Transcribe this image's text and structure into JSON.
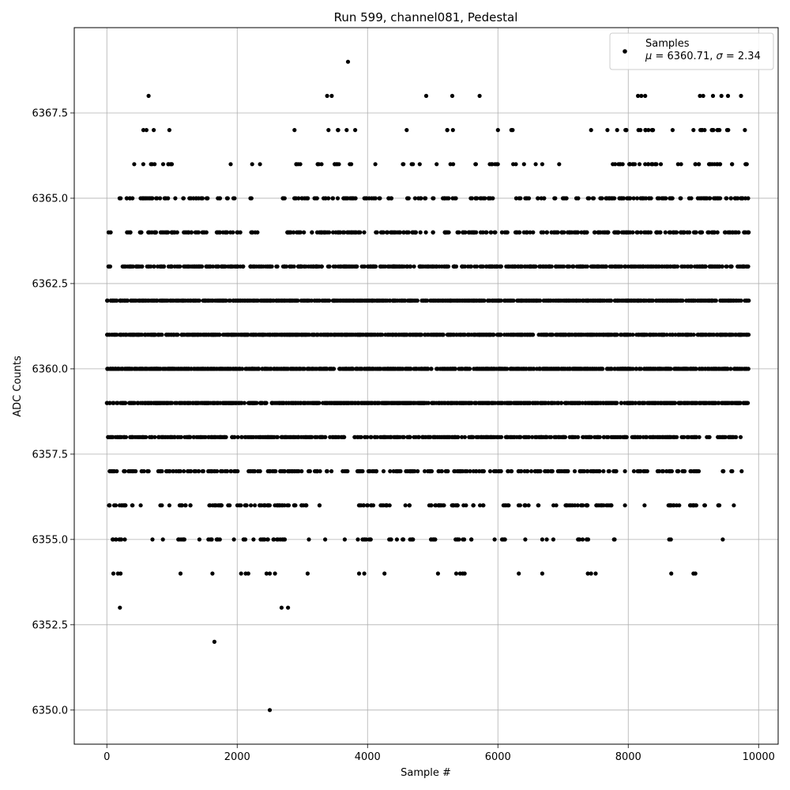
{
  "chart_data": {
    "type": "scatter",
    "title": "Run 599, channel081, Pedestal",
    "xlabel": "Sample #",
    "ylabel": "ADC Counts",
    "xlim": [
      -500,
      10300
    ],
    "ylim": [
      6349.0,
      6370.0
    ],
    "xticks": [
      0,
      2000,
      4000,
      6000,
      8000,
      10000
    ],
    "xtick_labels": [
      "0",
      "2000",
      "4000",
      "6000",
      "8000",
      "10000"
    ],
    "yticks": [
      6350.0,
      6352.5,
      6355.0,
      6357.5,
      6360.0,
      6362.5,
      6365.0,
      6367.5
    ],
    "ytick_labels": [
      "6350.0",
      "6352.5",
      "6355.0",
      "6357.5",
      "6360.0",
      "6362.5",
      "6365.0",
      "6367.5"
    ],
    "grid": true,
    "legend": {
      "placement": "top-right",
      "entries": [
        {
          "name": "Samples",
          "stat_mu": "6360.71",
          "stat_sigma": "2.34"
        }
      ]
    },
    "marker_color": "#000000",
    "series": [
      {
        "name": "Samples",
        "x_range": [
          0,
          9850
        ],
        "points": [
          [
            1650,
            6352
          ],
          [
            2500,
            6350
          ],
          [
            3700,
            6369
          ],
          [
            640,
            6368
          ],
          [
            3380,
            6368
          ],
          [
            3450,
            6368
          ],
          [
            4900,
            6368
          ],
          [
            5300,
            6368
          ],
          [
            5720,
            6368
          ],
          [
            8150,
            6368
          ],
          [
            8200,
            6368
          ],
          [
            8260,
            6368
          ],
          [
            9100,
            6368
          ],
          [
            9150,
            6368
          ],
          [
            9300,
            6368
          ],
          [
            9430,
            6368
          ],
          [
            9530,
            6368
          ],
          [
            9730,
            6368
          ],
          [
            200,
            6353
          ],
          [
            2680,
            6353
          ],
          [
            2780,
            6353
          ],
          [
            100,
            6354
          ],
          [
            170,
            6354
          ],
          [
            210,
            6354
          ],
          [
            1130,
            6354
          ],
          [
            1620,
            6354
          ],
          [
            2060,
            6354
          ],
          [
            2130,
            6354
          ],
          [
            2170,
            6354
          ],
          [
            2450,
            6354
          ],
          [
            2500,
            6354
          ],
          [
            2580,
            6354
          ],
          [
            3080,
            6354
          ],
          [
            3870,
            6354
          ],
          [
            3950,
            6354
          ],
          [
            4260,
            6354
          ],
          [
            5080,
            6354
          ],
          [
            5360,
            6354
          ],
          [
            5420,
            6354
          ],
          [
            5460,
            6354
          ],
          [
            5490,
            6354
          ],
          [
            6320,
            6354
          ],
          [
            6680,
            6354
          ],
          [
            7380,
            6354
          ],
          [
            7430,
            6354
          ],
          [
            7500,
            6354
          ],
          [
            8660,
            6354
          ],
          [
            9000,
            6354
          ],
          [
            9030,
            6354
          ]
        ],
        "dense_levels": [
          {
            "y": 6367,
            "segments": [
              [
                560,
                620
              ],
              [
                720,
                720
              ],
              [
                960,
                960
              ],
              [
                2880,
                2880
              ],
              [
                3400,
                3400
              ],
              [
                3520,
                3560
              ],
              [
                3680,
                3680
              ],
              [
                3810,
                3810
              ],
              [
                4600,
                4600
              ],
              [
                5220,
                5240
              ],
              [
                5310,
                5310
              ],
              [
                6000,
                6000
              ],
              [
                6200,
                6240
              ],
              [
                7430,
                7430
              ],
              [
                7680,
                7680
              ],
              [
                7830,
                7830
              ],
              [
                7900,
                7980
              ],
              [
                8150,
                8200
              ],
              [
                8260,
                8430
              ],
              [
                8680,
                8680
              ],
              [
                9000,
                9000
              ],
              [
                9100,
                9190
              ],
              [
                9280,
                9420
              ],
              [
                9500,
                9560
              ],
              [
                9790,
                9790
              ]
            ]
          },
          {
            "y": 6366,
            "segments": [
              [
                420,
                420
              ],
              [
                560,
                560
              ],
              [
                660,
                740
              ],
              [
                850,
                1000
              ],
              [
                1900,
                1900
              ],
              [
                2230,
                2230
              ],
              [
                2350,
                2350
              ],
              [
                2880,
                2980
              ],
              [
                3200,
                3300
              ],
              [
                3480,
                3600
              ],
              [
                3720,
                3760
              ],
              [
                4120,
                4120
              ],
              [
                4530,
                4560
              ],
              [
                4660,
                4720
              ],
              [
                4800,
                4800
              ],
              [
                5060,
                5060
              ],
              [
                5260,
                5320
              ],
              [
                5650,
                5700
              ],
              [
                5850,
                6000
              ],
              [
                6230,
                6280
              ],
              [
                6400,
                6400
              ],
              [
                6580,
                6580
              ],
              [
                6680,
                6680
              ],
              [
                6940,
                6940
              ],
              [
                7740,
                7800
              ],
              [
                7850,
                7950
              ],
              [
                8000,
                8200
              ],
              [
                8240,
                8500
              ],
              [
                8760,
                8820
              ],
              [
                9000,
                9100
              ],
              [
                9230,
                9450
              ],
              [
                9580,
                9640
              ],
              [
                9780,
                9850
              ]
            ]
          },
          {
            "y": 6365,
            "segments": [
              [
                170,
                230
              ],
              [
                290,
                420
              ],
              [
                490,
                1050
              ],
              [
                1120,
                1180
              ],
              [
                1260,
                1560
              ],
              [
                1700,
                1780
              ],
              [
                1840,
                1860
              ],
              [
                1940,
                1960
              ],
              [
                2200,
                2240
              ],
              [
                2650,
                2750
              ],
              [
                2850,
                3100
              ],
              [
                3180,
                3260
              ],
              [
                3320,
                3820
              ],
              [
                3950,
                4200
              ],
              [
                4300,
                4400
              ],
              [
                4580,
                4650
              ],
              [
                4720,
                4900
              ],
              [
                5000,
                5020
              ],
              [
                5150,
                5400
              ],
              [
                5580,
                6000
              ],
              [
                6280,
                6350
              ],
              [
                6380,
                6480
              ],
              [
                6600,
                6720
              ],
              [
                6850,
                6900
              ],
              [
                6980,
                7100
              ],
              [
                7200,
                7260
              ],
              [
                7380,
                7480
              ],
              [
                7560,
                9850
              ]
            ]
          },
          {
            "y": 6364,
            "segments": [
              [
                0,
                60
              ],
              [
                300,
                1100
              ],
              [
                1180,
                1560
              ],
              [
                1680,
                2050
              ],
              [
                2200,
                2320
              ],
              [
                2750,
                4000
              ],
              [
                4080,
                4500
              ],
              [
                4550,
                4900
              ],
              [
                5000,
                5020
              ],
              [
                5150,
                5500
              ],
              [
                5550,
                6000
              ],
              [
                6060,
                6150
              ],
              [
                6220,
                6340
              ],
              [
                6400,
                6550
              ],
              [
                6620,
                9850
              ]
            ]
          },
          {
            "y": 6363,
            "segments": [
              [
                0,
                70
              ],
              [
                240,
                2120
              ],
              [
                2200,
                2560
              ],
              [
                2600,
                2620
              ],
              [
                2700,
                9850
              ]
            ]
          },
          {
            "y": 6362,
            "segments": [
              [
                0,
                9850
              ]
            ]
          },
          {
            "y": 6361,
            "segments": [
              [
                0,
                9850
              ]
            ]
          },
          {
            "y": 6360,
            "segments": [
              [
                0,
                9850
              ]
            ]
          },
          {
            "y": 6359,
            "segments": [
              [
                0,
                9850
              ]
            ]
          },
          {
            "y": 6358,
            "segments": [
              [
                0,
                3650
              ],
              [
                3800,
                8000
              ],
              [
                8050,
                9100
              ],
              [
                9200,
                9250
              ],
              [
                9350,
                9750
              ]
            ]
          },
          {
            "y": 6357,
            "segments": [
              [
                0,
                650
              ],
              [
                780,
                3000
              ],
              [
                3080,
                3300
              ],
              [
                3350,
                3450
              ],
              [
                3600,
                3700
              ],
              [
                3800,
                4250
              ],
              [
                4320,
                5000
              ],
              [
                5080,
                5250
              ],
              [
                5300,
                5800
              ],
              [
                5880,
                6850
              ],
              [
                6900,
                7850
              ],
              [
                7950,
                7950
              ],
              [
                8050,
                8300
              ],
              [
                8450,
                9100
              ],
              [
                9380,
                9480
              ],
              [
                9580,
                9600
              ],
              [
                9740,
                9740
              ]
            ]
          },
          {
            "y": 6356,
            "segments": [
              [
                0,
                320
              ],
              [
                380,
                420
              ],
              [
                520,
                520
              ],
              [
                820,
                880
              ],
              [
                960,
                960
              ],
              [
                1100,
                1300
              ],
              [
                1550,
                1900
              ],
              [
                2000,
                2150
              ],
              [
                2200,
                2500
              ],
              [
                2550,
                2900
              ],
              [
                2950,
                3100
              ],
              [
                3250,
                3270
              ],
              [
                3850,
                4100
              ],
              [
                4200,
                4400
              ],
              [
                4580,
                4680
              ],
              [
                4850,
                5180
              ],
              [
                5280,
                5520
              ],
              [
                5580,
                5650
              ],
              [
                5720,
                5800
              ],
              [
                6050,
                6180
              ],
              [
                6300,
                6480
              ],
              [
                6600,
                6650
              ],
              [
                6850,
                6900
              ],
              [
                7000,
                7400
              ],
              [
                7500,
                7800
              ],
              [
                7950,
                7950
              ],
              [
                8250,
                8250
              ],
              [
                8600,
                9050
              ],
              [
                9150,
                9200
              ],
              [
                9380,
                9450
              ],
              [
                9620,
                9620
              ]
            ]
          },
          {
            "y": 6355,
            "segments": [
              [
                80,
                280
              ],
              [
                700,
                700
              ],
              [
                860,
                860
              ],
              [
                1050,
                1200
              ],
              [
                1420,
                1420
              ],
              [
                1550,
                1750
              ],
              [
                1950,
                1950
              ],
              [
                2080,
                2150
              ],
              [
                2250,
                2250
              ],
              [
                2350,
                2500
              ],
              [
                2550,
                2750
              ],
              [
                3100,
                3100
              ],
              [
                3350,
                3350
              ],
              [
                3650,
                3650
              ],
              [
                3850,
                4050
              ],
              [
                4300,
                4380
              ],
              [
                4450,
                4550
              ],
              [
                4650,
                4750
              ],
              [
                4950,
                5100
              ],
              [
                5350,
                5500
              ],
              [
                5550,
                5600
              ],
              [
                5950,
                5950
              ],
              [
                6050,
                6150
              ],
              [
                6420,
                6420
              ],
              [
                6680,
                6680
              ],
              [
                6750,
                6750
              ],
              [
                6850,
                6850
              ],
              [
                7200,
                7300
              ],
              [
                7350,
                7420
              ],
              [
                7780,
                7800
              ],
              [
                8620,
                8660
              ],
              [
                9450,
                9450
              ]
            ]
          }
        ]
      }
    ]
  }
}
